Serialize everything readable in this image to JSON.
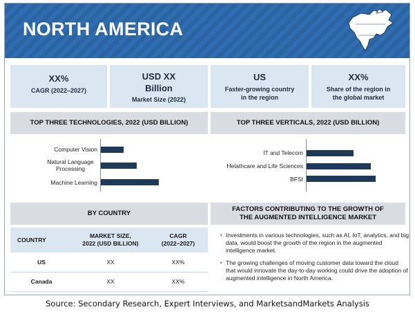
{
  "banner": {
    "title": "NORTH AMERICA"
  },
  "stats": [
    {
      "big": "XX%",
      "small": "CAGR (2022–2027)"
    },
    {
      "big_line1": "USD XX",
      "big_line2": "Billion",
      "small": "Market Size (2022)"
    },
    {
      "big": "US",
      "small_line1": "Faster-growing country",
      "small_line2": "in the region"
    },
    {
      "big": "XX%",
      "small_line1": "Share of the region in",
      "small_line2": "the global market"
    }
  ],
  "technologies": {
    "heading": "TOP THREE TECHNOLOGIES, 2022 (USD BILLION)",
    "chart_data": {
      "type": "bar",
      "orientation": "horizontal",
      "categories": [
        "Computer Vision",
        "Natural Language Processing",
        "Machine Learning"
      ],
      "values": [
        33,
        52,
        84
      ],
      "value_scale": "relative, unlabeled axis",
      "color": "#1e3a5a"
    }
  },
  "verticals": {
    "heading": "TOP THREE VERTICALS, 2022 (USD BILLION)",
    "chart_data": {
      "type": "bar",
      "orientation": "horizontal",
      "categories": [
        "IT and Telecom",
        "Helathcare and Life Sciences",
        "BFSI"
      ],
      "values": [
        64,
        88,
        94
      ],
      "value_scale": "relative, unlabeled axis",
      "color": "#1e3a5a"
    }
  },
  "by_country": {
    "heading": "BY COUNTRY",
    "columns": {
      "country": "COUNTRY",
      "size_line1": "MARKET SIZE,",
      "size_line2": "2022 (USD BILLION)",
      "cagr_line1": "CAGR",
      "cagr_line2": "(2022–2027)"
    },
    "rows": [
      {
        "country": "US",
        "size": "XX",
        "cagr": "XX%"
      },
      {
        "country": "Canada",
        "size": "XX",
        "cagr": "XX%"
      }
    ]
  },
  "factors": {
    "heading_line1": "FACTORS CONTRIBUTING TO THE GROWTH OF",
    "heading_line2": "THE AUGMENTED INTELLIGENCE MARKET",
    "items": [
      "Investments in various technologies, such as AI, IoT, analytics, and big data, would boost the growth of the region in the augmented intelligence market.",
      "The growing challenges of moving customer data toward the cloud that would innovate the day-to-day working could drive the adoption of augmented intelligence in North America."
    ]
  },
  "source": "Source: Secondary Research, Expert Interviews, and MarketsandMarkets Analysis",
  "colors": {
    "banner": "#2f6db0",
    "stat_bg": "#dbe6f3",
    "header_bg": "#d9dde2",
    "bar": "#1e3a5a"
  }
}
